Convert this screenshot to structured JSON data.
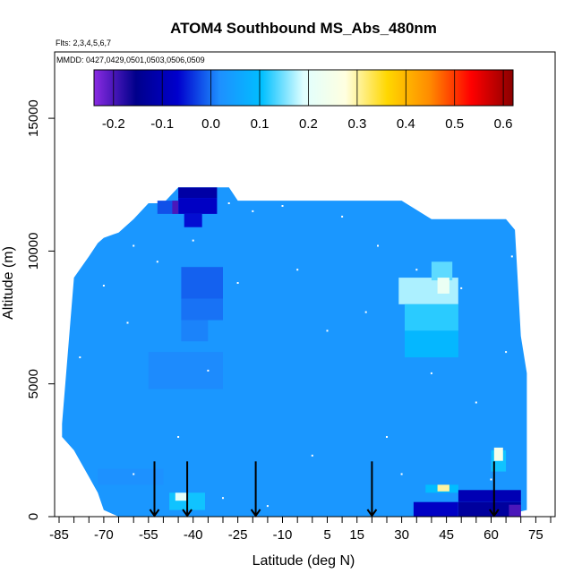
{
  "chart_data": {
    "type": "heatmap",
    "title": "ATOM4 Southbound MS_Abs_480nm",
    "flights_note": "Flts: 2,3,4,5,6,7",
    "mmdd_note": "MMDD: 0427,0429,0501,0503,0506,0509",
    "xlabel": "Latitude (deg N)",
    "ylabel": "Altitude (m)",
    "xlim": [
      -86.5,
      81.5
    ],
    "ylim": [
      0,
      17500
    ],
    "x_ticks": [
      -85,
      -70,
      -55,
      -40,
      -25,
      -10,
      5,
      15,
      30,
      45,
      60,
      75
    ],
    "x_tick_labels": [
      "-85",
      "-70",
      "-55",
      "-40",
      "-25",
      "-10",
      "5",
      "15",
      "30",
      "45",
      "60",
      "75"
    ],
    "x_minor_ticks": [
      -80,
      -75,
      -65,
      -60,
      -50,
      -45,
      -35,
      -30,
      -20,
      -15,
      -5,
      0,
      10,
      20,
      25,
      35,
      40,
      50,
      55,
      65,
      70,
      80
    ],
    "y_ticks": [
      0,
      5000,
      10000,
      15000
    ],
    "y_tick_labels": [
      "0",
      "5000",
      "10000",
      "15000"
    ],
    "colorbar": {
      "range": [
        -0.24,
        0.62
      ],
      "ticks": [
        -0.2,
        -0.1,
        0.0,
        0.1,
        0.2,
        0.3,
        0.4,
        0.5,
        0.6
      ],
      "tick_labels": [
        "-0.2",
        "-0.1",
        "0.0",
        "0.1",
        "0.2",
        "0.3",
        "0.4",
        "0.5",
        "0.6"
      ],
      "colors": [
        "#8a2be2",
        "#00008b",
        "#0000cd",
        "#1e90ff",
        "#00bfff",
        "#e0ffff",
        "#ffffe0",
        "#ffd700",
        "#ff8c00",
        "#ff0000",
        "#8b0000"
      ]
    },
    "background_value": 0.03,
    "coverage": {
      "lat": [
        -84,
        -80,
        -75,
        -72,
        -70,
        -65,
        -60,
        -55,
        -50,
        -45,
        -40,
        -35,
        -32,
        -28,
        -25,
        -20,
        -10,
        0,
        10,
        20,
        30,
        40,
        50,
        60,
        65,
        68,
        70,
        72
      ],
      "alt_top": [
        3500,
        9000,
        9800,
        10300,
        10500,
        10700,
        11200,
        11800,
        11800,
        12400,
        12400,
        12400,
        12400,
        12400,
        11900,
        11900,
        11900,
        11900,
        11900,
        11900,
        11900,
        11200,
        11200,
        11200,
        11200,
        10800,
        6800,
        5400
      ],
      "alt_bottom": [
        3000,
        2500,
        1500,
        900,
        250,
        0,
        0,
        0,
        0,
        0,
        0,
        0,
        0,
        0,
        0,
        0,
        0,
        0,
        0,
        0,
        0,
        0,
        0,
        0,
        0,
        0,
        200,
        250
      ]
    },
    "features": [
      {
        "lat": [
          -45,
          -32
        ],
        "alt": [
          12000,
          12400
        ],
        "value": -0.12
      },
      {
        "lat": [
          -45,
          -32
        ],
        "alt": [
          11400,
          12000
        ],
        "value": -0.08
      },
      {
        "lat": [
          -43,
          -37
        ],
        "alt": [
          10900,
          11400
        ],
        "value": -0.06
      },
      {
        "lat": [
          -52,
          -45
        ],
        "alt": [
          11400,
          11900
        ],
        "value": -0.02
      },
      {
        "lat": [
          -47,
          -45
        ],
        "alt": [
          11400,
          11900
        ],
        "value": -0.2
      },
      {
        "lat": [
          -44,
          -30
        ],
        "alt": [
          8200,
          9400
        ],
        "value": -0.01
      },
      {
        "lat": [
          -44,
          -30
        ],
        "alt": [
          7400,
          8200
        ],
        "value": 0.0
      },
      {
        "lat": [
          -44,
          -35
        ],
        "alt": [
          6600,
          7400
        ],
        "value": 0.01
      },
      {
        "lat": [
          29,
          49
        ],
        "alt": [
          8000,
          9000
        ],
        "value": 0.17
      },
      {
        "lat": [
          31,
          49
        ],
        "alt": [
          7000,
          8000
        ],
        "value": 0.12
      },
      {
        "lat": [
          31,
          49
        ],
        "alt": [
          6000,
          7000
        ],
        "value": 0.09
      },
      {
        "lat": [
          40,
          47
        ],
        "alt": [
          8900,
          9600
        ],
        "value": 0.14
      },
      {
        "lat": [
          42,
          46
        ],
        "alt": [
          8400,
          9000
        ],
        "value": 0.22
      },
      {
        "lat": [
          60,
          65
        ],
        "alt": [
          1700,
          2500
        ],
        "value": 0.11
      },
      {
        "lat": [
          61,
          64
        ],
        "alt": [
          2100,
          2600
        ],
        "value": 0.25
      },
      {
        "lat": [
          38,
          49
        ],
        "alt": [
          900,
          1200
        ],
        "value": 0.1
      },
      {
        "lat": [
          42,
          46
        ],
        "alt": [
          950,
          1200
        ],
        "value": 0.3
      },
      {
        "lat": [
          34,
          49
        ],
        "alt": [
          0,
          550
        ],
        "value": -0.08
      },
      {
        "lat": [
          49,
          70
        ],
        "alt": [
          0,
          550
        ],
        "value": -0.13
      },
      {
        "lat": [
          49,
          70
        ],
        "alt": [
          550,
          1000
        ],
        "value": -0.1
      },
      {
        "lat": [
          66,
          70
        ],
        "alt": [
          0,
          450
        ],
        "value": -0.2
      },
      {
        "lat": [
          -48,
          -36
        ],
        "alt": [
          250,
          900
        ],
        "value": 0.11
      },
      {
        "lat": [
          -46,
          -42
        ],
        "alt": [
          600,
          900
        ],
        "value": 0.2
      },
      {
        "lat": [
          -72,
          -50
        ],
        "alt": [
          1200,
          1800
        ],
        "value": 0.02
      },
      {
        "lat": [
          -55,
          -30
        ],
        "alt": [
          4800,
          6200
        ],
        "value": 0.015
      }
    ],
    "speckles": [
      {
        "lat": -60,
        "alt": 10200
      },
      {
        "lat": -52,
        "alt": 9600
      },
      {
        "lat": -40,
        "alt": 10400
      },
      {
        "lat": -28,
        "alt": 11800
      },
      {
        "lat": -20,
        "alt": 11500
      },
      {
        "lat": -10,
        "alt": 11700
      },
      {
        "lat": 10,
        "alt": 11300
      },
      {
        "lat": 22,
        "alt": 10200
      },
      {
        "lat": 35,
        "alt": 9300
      },
      {
        "lat": 50,
        "alt": 8600
      },
      {
        "lat": -70,
        "alt": 8700
      },
      {
        "lat": -62,
        "alt": 7300
      },
      {
        "lat": -35,
        "alt": 5500
      },
      {
        "lat": 5,
        "alt": 7000
      },
      {
        "lat": 55,
        "alt": 4300
      },
      {
        "lat": -60,
        "alt": 1600
      },
      {
        "lat": -15,
        "alt": 400
      },
      {
        "lat": 0,
        "alt": 2300
      },
      {
        "lat": 25,
        "alt": 3000
      },
      {
        "lat": 60,
        "alt": 1400
      },
      {
        "lat": -78,
        "alt": 6000
      },
      {
        "lat": -45,
        "alt": 3000
      },
      {
        "lat": 18,
        "alt": 7700
      },
      {
        "lat": 67,
        "alt": 9800
      },
      {
        "lat": -25,
        "alt": 8800
      },
      {
        "lat": 40,
        "alt": 5400
      },
      {
        "lat": -5,
        "alt": 9300
      },
      {
        "lat": 30,
        "alt": 1600
      },
      {
        "lat": -30,
        "alt": 700
      },
      {
        "lat": 65,
        "alt": 6200
      }
    ],
    "arrows_lat": [
      -53,
      -42,
      -19,
      20,
      61
    ],
    "arrow_length_m": 800
  }
}
